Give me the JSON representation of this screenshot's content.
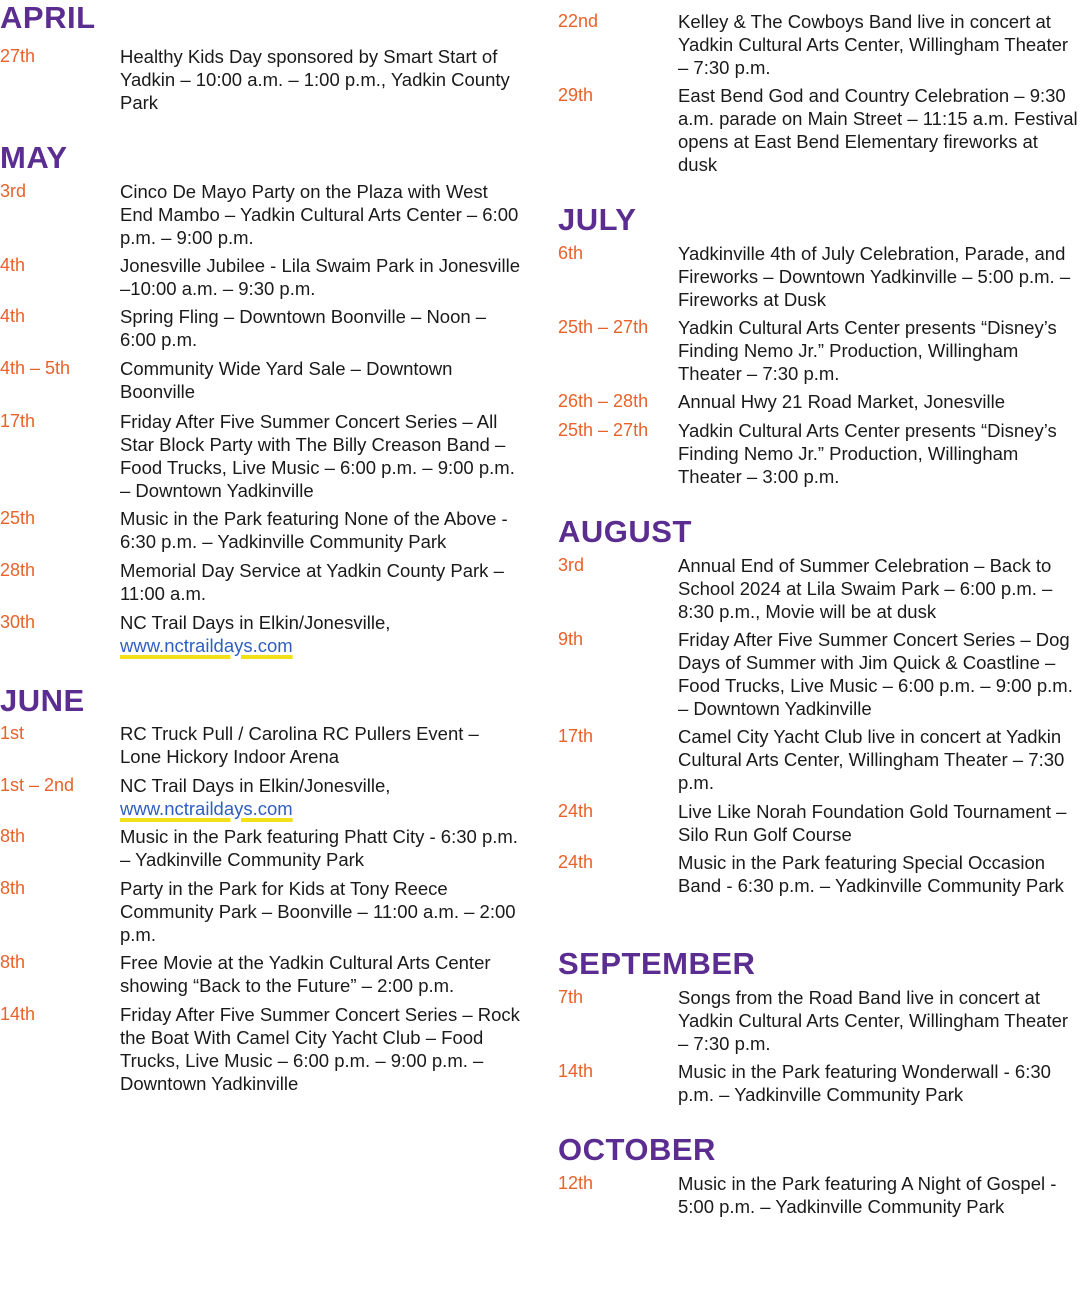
{
  "colors": {
    "month": "#5b2d91",
    "date": "#e8622a",
    "text": "#1a1a1a",
    "link": "#2f5fbf",
    "highlight": "#f2e11a"
  },
  "left": [
    {
      "name": "APRIL",
      "events": [
        {
          "date": "27th",
          "text": "Healthy Kids Day sponsored by Smart Start of Yadkin – 10:00 a.m. – 1:00 p.m., Yadkin County Park"
        }
      ]
    },
    {
      "name": "MAY",
      "events": [
        {
          "date": "3rd",
          "text": "Cinco De Mayo Party on the Plaza with West End Mambo – Yadkin Cultural Arts Center – 6:00 p.m. – 9:00 p.m."
        },
        {
          "date": "4th",
          "text": "Jonesville Jubilee - Lila Swaim Park in Jonesville –10:00 a.m. – 9:30 p.m."
        },
        {
          "date": "4th",
          "text": "Spring Fling – Downtown Boonville – Noon – 6:00 p.m."
        },
        {
          "date": "4th – 5th",
          "text": "Community Wide Yard Sale – Downtown Boonville"
        },
        {
          "date": "17th",
          "text": "Friday After Five Summer Concert Series – All Star Block Party with The Billy Creason Band – Food Trucks, Live Music – 6:00 p.m. – 9:00 p.m. – Downtown Yadkinville"
        },
        {
          "date": "25th",
          "text": "Music in the Park featuring None of the Above - 6:30 p.m. – Yadkinville Community Park"
        },
        {
          "date": "28th",
          "text": "Memorial Day Service at Yadkin County Park – 11:00 a.m."
        },
        {
          "date": "30th",
          "text": "NC Trail Days in Elkin/Jonesville, ",
          "link": "www.nctraildays.com"
        }
      ]
    },
    {
      "name": "JUNE",
      "events": [
        {
          "date": "1st",
          "text": "RC Truck Pull / Carolina RC Pullers Event – Lone Hickory Indoor Arena"
        },
        {
          "date": "1st – 2nd",
          "text": "NC Trail Days in Elkin/Jonesville, ",
          "link": "www.nctraildays.com"
        },
        {
          "date": "8th",
          "text": "Music in the Park featuring Phatt City - 6:30 p.m. – Yadkinville Community Park"
        },
        {
          "date": "8th",
          "text": "Party in the Park for Kids at Tony Reece Community Park – Boonville – 11:00 a.m. – 2:00 p.m."
        },
        {
          "date": "8th",
          "text": "Free Movie at the Yadkin Cultural Arts Center showing “Back to the Future” – 2:00 p.m."
        },
        {
          "date": "14th",
          "text": "Friday After Five Summer Concert Series – Rock the Boat With Camel City Yacht Club – Food Trucks, Live Music – 6:00 p.m. – 9:00 p.m. – Downtown Yadkinville"
        }
      ]
    }
  ],
  "right": [
    {
      "name": "",
      "events": [
        {
          "date": "22nd",
          "text": "Kelley & The Cowboys Band live in concert at Yadkin Cultural Arts Center, Willingham Theater – 7:30 p.m."
        },
        {
          "date": "29th",
          "text": "East Bend God and Country Celebration – 9:30 a.m. parade on Main Street – 11:15 a.m. Festival opens at East Bend Elementary fireworks at dusk"
        }
      ]
    },
    {
      "name": "JULY",
      "events": [
        {
          "date": "6th",
          "text": "Yadkinville 4th of July Celebration, Parade, and Fireworks – Downtown Yadkinville – 5:00 p.m. – Fireworks at Dusk"
        },
        {
          "date": "25th – 27th",
          "text": "Yadkin Cultural Arts Center presents “Disney’s Finding Nemo Jr.” Production, Willingham Theater – 7:30 p.m."
        },
        {
          "date": "26th – 28th",
          "text": "Annual Hwy 21 Road Market, Jonesville"
        },
        {
          "date": "25th – 27th",
          "text": "Yadkin Cultural Arts Center presents “Disney’s Finding Nemo Jr.” Production, Willingham Theater – 3:00 p.m."
        }
      ]
    },
    {
      "name": "AUGUST",
      "events": [
        {
          "date": "3rd",
          "text": "Annual End of Summer Celebration – Back to School 2024 at Lila Swaim Park – 6:00 p.m. – 8:30 p.m., Movie will be at dusk"
        },
        {
          "date": "9th",
          "text": "Friday After Five Summer Concert Series – Dog Days of Summer with Jim Quick & Coastline – Food Trucks, Live Music – 6:00 p.m. – 9:00 p.m. – Downtown Yadkinville"
        },
        {
          "date": "17th",
          "text": "Camel City Yacht Club live in concert at Yadkin Cultural Arts Center, Willingham Theater – 7:30 p.m."
        },
        {
          "date": "24th",
          "text": "Live Like Norah Foundation Gold Tournament – Silo Run Golf Course"
        },
        {
          "date": "24th",
          "text": "Music in the Park featuring Special Occasion Band - 6:30 p.m. – Yadkinville Community Park"
        }
      ]
    },
    {
      "name": "SEPTEMBER",
      "events": [
        {
          "date": "7th",
          "text": "Songs from the Road Band live in concert at Yadkin Cultural Arts Center, Willingham Theater – 7:30 p.m."
        },
        {
          "date": "14th",
          "text": "Music in the Park featuring Wonderwall - 6:30 p.m. – Yadkinville Community Park"
        }
      ]
    },
    {
      "name": "OCTOBER",
      "events": [
        {
          "date": "12th",
          "text": "Music in the Park featuring A Night of Gospel - 5:00 p.m. – Yadkinville Community Park"
        }
      ]
    }
  ]
}
